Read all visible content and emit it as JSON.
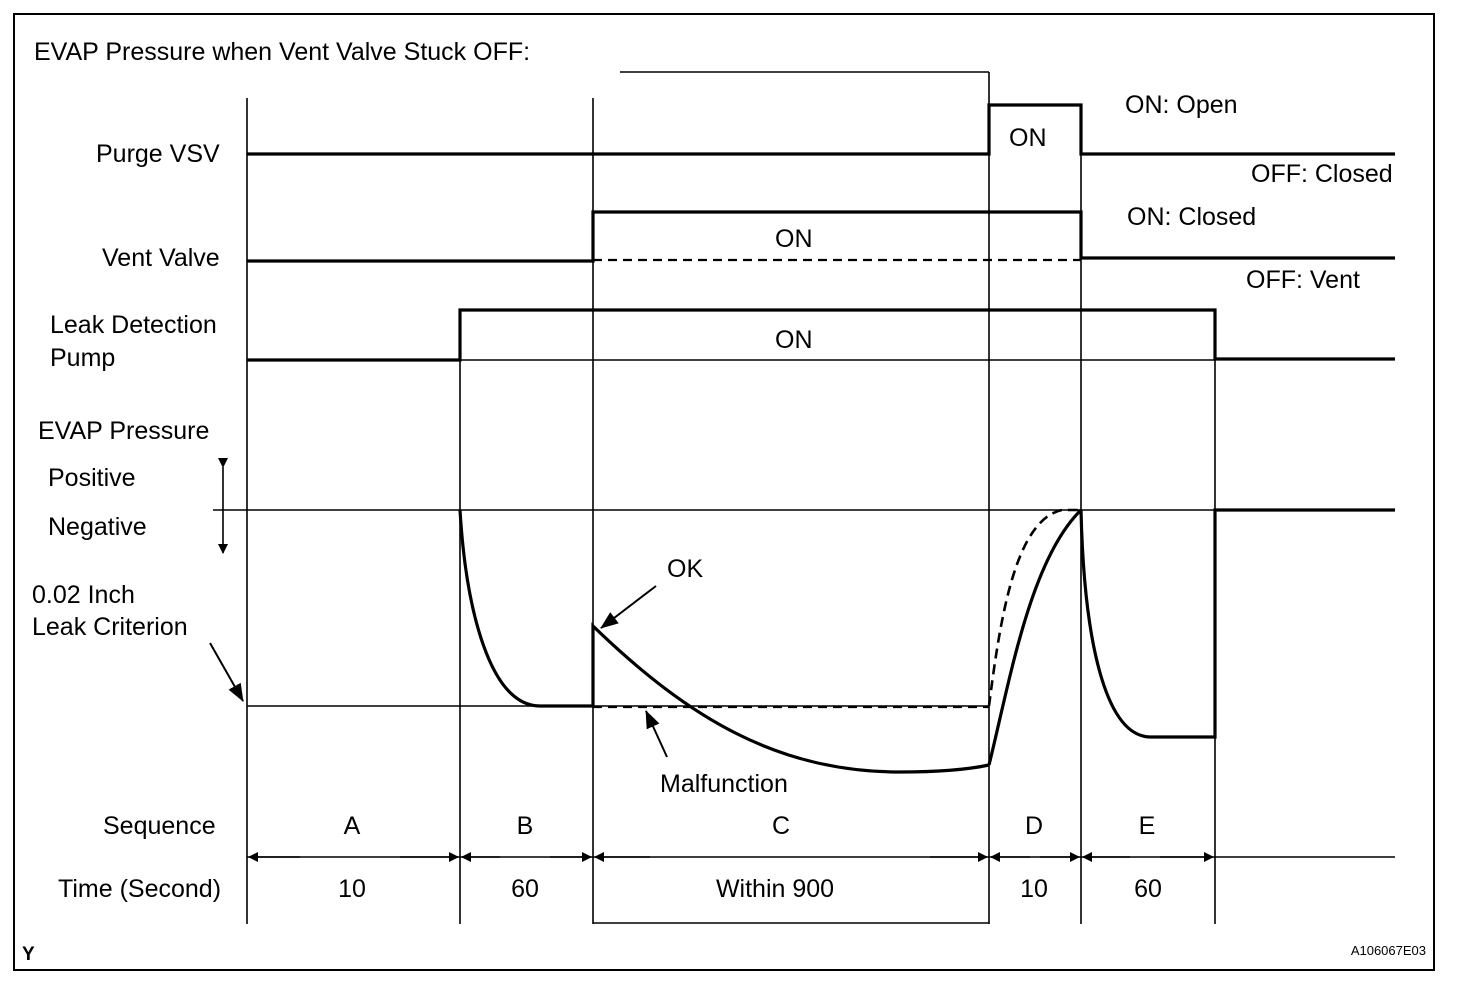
{
  "title": "EVAP Pressure when Vent Valve Stuck OFF:",
  "rows": {
    "purge_vsv": "Purge VSV",
    "vent_valve": "Vent Valve",
    "leak_pump_line1": "Leak Detection",
    "leak_pump_line2": "Pump",
    "evap_pressure": "EVAP Pressure",
    "positive": "Positive",
    "negative": "Negative",
    "criterion_line1": "0.02 Inch",
    "criterion_line2": "Leak Criterion",
    "sequence": "Sequence",
    "time": "Time (Second)"
  },
  "signal_labels": {
    "purge_on": "ON",
    "purge_on_state": "ON: Open",
    "purge_off_state": "OFF: Closed",
    "vent_on": "ON",
    "vent_on_state": "ON: Closed",
    "vent_off_state": "OFF: Vent",
    "pump_on": "ON"
  },
  "annotations": {
    "ok": "OK",
    "malfunction": "Malfunction"
  },
  "sequences": [
    {
      "name": "A",
      "time": "10"
    },
    {
      "name": "B",
      "time": "60"
    },
    {
      "name": "C",
      "time": "Within 900"
    },
    {
      "name": "D",
      "time": "10"
    },
    {
      "name": "E",
      "time": "60"
    }
  ],
  "corner_mark": "Y",
  "figure_code": "A106067E03"
}
